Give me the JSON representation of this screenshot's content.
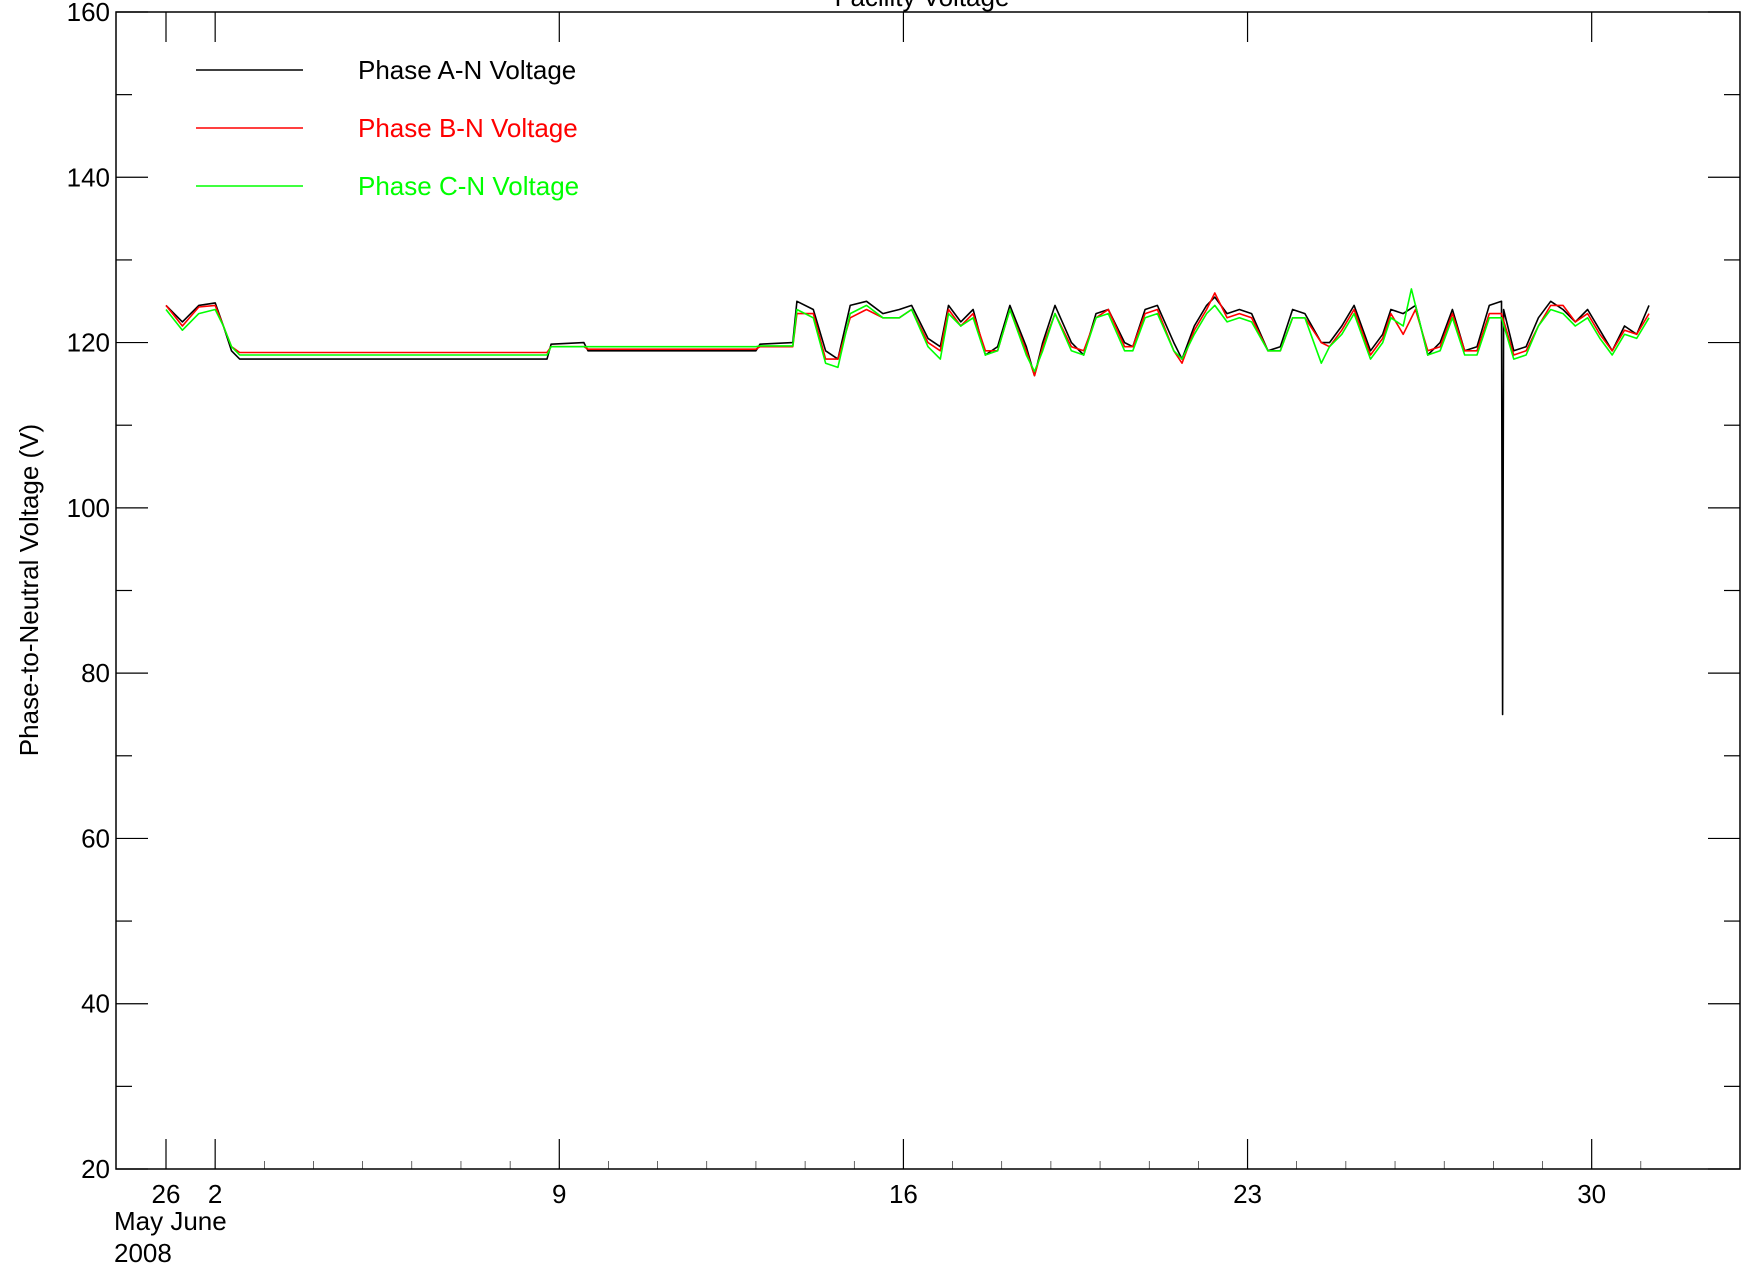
{
  "chart_data": {
    "type": "line",
    "title": "Facility Voltage",
    "ylabel": "Phase-to-Neutral Voltage (V)",
    "xlabel": "",
    "ylim": [
      20,
      160
    ],
    "xlim": [
      "2008-05-31",
      "2008-07-01"
    ],
    "y_ticks": [
      "20",
      "40",
      "60",
      "80",
      "100",
      "120",
      "140",
      "160"
    ],
    "x_ticks": [
      {
        "x": "2008-05-31",
        "label": "26"
      },
      {
        "x": "2008-06-01",
        "label": "2"
      },
      {
        "x": "2008-06-08",
        "label": "9"
      },
      {
        "x": "2008-06-15",
        "label": "16"
      },
      {
        "x": "2008-06-22",
        "label": "23"
      },
      {
        "x": "2008-06-29",
        "label": "30"
      }
    ],
    "x_sublabels": [
      "May June",
      "2008"
    ],
    "grid": false,
    "legend_position": "top-left",
    "series": [
      {
        "name": "Phase A-N Voltage",
        "color": "#000000",
        "points": [
          [
            "2008-05-31T00:00",
            124.5
          ],
          [
            "2008-05-31T08:00",
            122.5
          ],
          [
            "2008-05-31T16:00",
            124.5
          ],
          [
            "2008-06-01T00:00",
            124.8
          ],
          [
            "2008-06-01T04:00",
            122
          ],
          [
            "2008-06-01T08:00",
            119
          ],
          [
            "2008-06-01T12:00",
            118
          ],
          [
            "2008-06-07T18:00",
            118
          ],
          [
            "2008-06-07T20:00",
            119.8
          ],
          [
            "2008-06-08T12:00",
            120
          ],
          [
            "2008-06-08T14:00",
            119
          ],
          [
            "2008-06-12T00:00",
            119
          ],
          [
            "2008-06-12T02:00",
            119.8
          ],
          [
            "2008-06-12T18:00",
            120
          ],
          [
            "2008-06-12T20:00",
            125
          ],
          [
            "2008-06-13T04:00",
            124
          ],
          [
            "2008-06-13T10:00",
            119
          ],
          [
            "2008-06-13T16:00",
            118
          ],
          [
            "2008-06-13T22:00",
            124.5
          ],
          [
            "2008-06-14T06:00",
            125
          ],
          [
            "2008-06-14T14:00",
            123.5
          ],
          [
            "2008-06-14T22:00",
            124
          ],
          [
            "2008-06-15T04:00",
            124.5
          ],
          [
            "2008-06-15T12:00",
            120.5
          ],
          [
            "2008-06-15T18:00",
            119.5
          ],
          [
            "2008-06-15T22:00",
            124.5
          ],
          [
            "2008-06-16T04:00",
            122.5
          ],
          [
            "2008-06-16T10:00",
            124
          ],
          [
            "2008-06-16T16:00",
            118.5
          ],
          [
            "2008-06-16T22:00",
            119.5
          ],
          [
            "2008-06-17T04:00",
            124.5
          ],
          [
            "2008-06-17T12:00",
            119.5
          ],
          [
            "2008-06-17T16:00",
            116
          ],
          [
            "2008-06-17T20:00",
            120
          ],
          [
            "2008-06-18T02:00",
            124.5
          ],
          [
            "2008-06-18T10:00",
            120
          ],
          [
            "2008-06-18T16:00",
            118.5
          ],
          [
            "2008-06-18T22:00",
            123.5
          ],
          [
            "2008-06-19T04:00",
            124
          ],
          [
            "2008-06-19T12:00",
            120
          ],
          [
            "2008-06-19T16:00",
            119.5
          ],
          [
            "2008-06-19T22:00",
            124
          ],
          [
            "2008-06-20T04:00",
            124.5
          ],
          [
            "2008-06-20T12:00",
            120
          ],
          [
            "2008-06-20T16:00",
            118
          ],
          [
            "2008-06-20T22:00",
            122
          ],
          [
            "2008-06-21T04:00",
            124.5
          ],
          [
            "2008-06-21T08:00",
            125.5
          ],
          [
            "2008-06-21T14:00",
            123.5
          ],
          [
            "2008-06-21T20:00",
            124
          ],
          [
            "2008-06-22T02:00",
            123.5
          ],
          [
            "2008-06-22T10:00",
            119
          ],
          [
            "2008-06-22T16:00",
            119.5
          ],
          [
            "2008-06-22T22:00",
            124
          ],
          [
            "2008-06-23T04:00",
            123.5
          ],
          [
            "2008-06-23T12:00",
            120
          ],
          [
            "2008-06-23T16:00",
            120
          ],
          [
            "2008-06-23T22:00",
            122
          ],
          [
            "2008-06-24T04:00",
            124.5
          ],
          [
            "2008-06-24T12:00",
            119
          ],
          [
            "2008-06-24T18:00",
            121
          ],
          [
            "2008-06-24T22:00",
            124
          ],
          [
            "2008-06-25T04:00",
            123.5
          ],
          [
            "2008-06-25T10:00",
            124.5
          ],
          [
            "2008-06-25T16:00",
            118.5
          ],
          [
            "2008-06-25T22:00",
            120
          ],
          [
            "2008-06-26T04:00",
            124
          ],
          [
            "2008-06-26T10:00",
            119
          ],
          [
            "2008-06-26T16:00",
            119.5
          ],
          [
            "2008-06-26T22:00",
            124.5
          ],
          [
            "2008-06-27T04:00",
            125
          ],
          [
            "2008-06-27T04:30",
            75
          ],
          [
            "2008-06-27T05:00",
            124
          ],
          [
            "2008-06-27T10:00",
            119
          ],
          [
            "2008-06-27T16:00",
            119.5
          ],
          [
            "2008-06-27T22:00",
            123
          ],
          [
            "2008-06-28T04:00",
            125
          ],
          [
            "2008-06-28T10:00",
            124
          ],
          [
            "2008-06-28T16:00",
            122.5
          ],
          [
            "2008-06-28T22:00",
            124
          ],
          [
            "2008-06-29T04:00",
            121.5
          ],
          [
            "2008-06-29T10:00",
            119
          ],
          [
            "2008-06-29T16:00",
            122
          ],
          [
            "2008-06-29T22:00",
            121
          ],
          [
            "2008-06-30T04:00",
            124.5
          ]
        ]
      },
      {
        "name": "Phase B-N Voltage",
        "color": "#ff0000",
        "points": [
          [
            "2008-05-31T00:00",
            124.5
          ],
          [
            "2008-05-31T08:00",
            122
          ],
          [
            "2008-05-31T16:00",
            124.3
          ],
          [
            "2008-06-01T00:00",
            124.5
          ],
          [
            "2008-06-01T04:00",
            122
          ],
          [
            "2008-06-01T08:00",
            119.5
          ],
          [
            "2008-06-01T12:00",
            118.8
          ],
          [
            "2008-06-07T18:00",
            118.8
          ],
          [
            "2008-06-07T20:00",
            119.5
          ],
          [
            "2008-06-08T12:00",
            119.5
          ],
          [
            "2008-06-08T14:00",
            119.2
          ],
          [
            "2008-06-12T00:00",
            119.2
          ],
          [
            "2008-06-12T02:00",
            119.5
          ],
          [
            "2008-06-12T18:00",
            119.5
          ],
          [
            "2008-06-12T20:00",
            123.5
          ],
          [
            "2008-06-13T04:00",
            123.5
          ],
          [
            "2008-06-13T10:00",
            118
          ],
          [
            "2008-06-13T16:00",
            118
          ],
          [
            "2008-06-13T22:00",
            123
          ],
          [
            "2008-06-14T06:00",
            124
          ],
          [
            "2008-06-14T14:00",
            123
          ],
          [
            "2008-06-14T22:00",
            123
          ],
          [
            "2008-06-15T04:00",
            124
          ],
          [
            "2008-06-15T12:00",
            120
          ],
          [
            "2008-06-15T18:00",
            119
          ],
          [
            "2008-06-15T22:00",
            124
          ],
          [
            "2008-06-16T04:00",
            122
          ],
          [
            "2008-06-16T10:00",
            123.5
          ],
          [
            "2008-06-16T16:00",
            119
          ],
          [
            "2008-06-16T22:00",
            119
          ],
          [
            "2008-06-17T04:00",
            124
          ],
          [
            "2008-06-17T12:00",
            119
          ],
          [
            "2008-06-17T16:00",
            116
          ],
          [
            "2008-06-17T20:00",
            119.5
          ],
          [
            "2008-06-18T02:00",
            123.5
          ],
          [
            "2008-06-18T10:00",
            119.5
          ],
          [
            "2008-06-18T16:00",
            119
          ],
          [
            "2008-06-18T22:00",
            123
          ],
          [
            "2008-06-19T04:00",
            124
          ],
          [
            "2008-06-19T12:00",
            119.5
          ],
          [
            "2008-06-19T16:00",
            119.5
          ],
          [
            "2008-06-19T22:00",
            123.5
          ],
          [
            "2008-06-20T04:00",
            124
          ],
          [
            "2008-06-20T12:00",
            119
          ],
          [
            "2008-06-20T16:00",
            117.5
          ],
          [
            "2008-06-20T22:00",
            121.5
          ],
          [
            "2008-06-21T04:00",
            124
          ],
          [
            "2008-06-21T08:00",
            126
          ],
          [
            "2008-06-21T14:00",
            123
          ],
          [
            "2008-06-21T20:00",
            123.5
          ],
          [
            "2008-06-22T02:00",
            123
          ],
          [
            "2008-06-22T10:00",
            119
          ],
          [
            "2008-06-22T16:00",
            119
          ],
          [
            "2008-06-22T22:00",
            123
          ],
          [
            "2008-06-23T04:00",
            123
          ],
          [
            "2008-06-23T12:00",
            120
          ],
          [
            "2008-06-23T16:00",
            119.5
          ],
          [
            "2008-06-23T22:00",
            121.5
          ],
          [
            "2008-06-24T04:00",
            124
          ],
          [
            "2008-06-24T12:00",
            118.5
          ],
          [
            "2008-06-24T18:00",
            120.5
          ],
          [
            "2008-06-24T22:00",
            123.5
          ],
          [
            "2008-06-25T04:00",
            121
          ],
          [
            "2008-06-25T10:00",
            124
          ],
          [
            "2008-06-25T16:00",
            119
          ],
          [
            "2008-06-25T22:00",
            119.5
          ],
          [
            "2008-06-26T04:00",
            123.5
          ],
          [
            "2008-06-26T10:00",
            119
          ],
          [
            "2008-06-26T16:00",
            119
          ],
          [
            "2008-06-26T22:00",
            123.5
          ],
          [
            "2008-06-27T04:00",
            123.5
          ],
          [
            "2008-06-27T10:00",
            118.5
          ],
          [
            "2008-06-27T16:00",
            119
          ],
          [
            "2008-06-27T22:00",
            122
          ],
          [
            "2008-06-28T04:00",
            124.5
          ],
          [
            "2008-06-28T10:00",
            124.5
          ],
          [
            "2008-06-28T16:00",
            122.5
          ],
          [
            "2008-06-28T22:00",
            123.5
          ],
          [
            "2008-06-29T04:00",
            121
          ],
          [
            "2008-06-29T10:00",
            119
          ],
          [
            "2008-06-29T16:00",
            121.5
          ],
          [
            "2008-06-29T22:00",
            121
          ],
          [
            "2008-06-30T04:00",
            123.5
          ]
        ]
      },
      {
        "name": "Phase C-N Voltage",
        "color": "#00ff00",
        "points": [
          [
            "2008-05-31T00:00",
            124
          ],
          [
            "2008-05-31T08:00",
            121.5
          ],
          [
            "2008-05-31T16:00",
            123.5
          ],
          [
            "2008-06-01T00:00",
            124
          ],
          [
            "2008-06-01T04:00",
            122
          ],
          [
            "2008-06-01T08:00",
            119.5
          ],
          [
            "2008-06-01T12:00",
            118.5
          ],
          [
            "2008-06-07T18:00",
            118.5
          ],
          [
            "2008-06-07T20:00",
            119.5
          ],
          [
            "2008-06-08T12:00",
            119.5
          ],
          [
            "2008-06-08T14:00",
            119.5
          ],
          [
            "2008-06-12T00:00",
            119.5
          ],
          [
            "2008-06-12T02:00",
            119.6
          ],
          [
            "2008-06-12T18:00",
            119.6
          ],
          [
            "2008-06-12T20:00",
            124
          ],
          [
            "2008-06-13T04:00",
            123
          ],
          [
            "2008-06-13T10:00",
            117.5
          ],
          [
            "2008-06-13T16:00",
            117
          ],
          [
            "2008-06-13T22:00",
            123.5
          ],
          [
            "2008-06-14T06:00",
            124.5
          ],
          [
            "2008-06-14T14:00",
            123
          ],
          [
            "2008-06-14T22:00",
            123
          ],
          [
            "2008-06-15T04:00",
            124
          ],
          [
            "2008-06-15T12:00",
            119.5
          ],
          [
            "2008-06-15T18:00",
            118
          ],
          [
            "2008-06-15T22:00",
            123.5
          ],
          [
            "2008-06-16T04:00",
            122
          ],
          [
            "2008-06-16T10:00",
            123
          ],
          [
            "2008-06-16T16:00",
            118.5
          ],
          [
            "2008-06-16T22:00",
            119
          ],
          [
            "2008-06-17T04:00",
            124
          ],
          [
            "2008-06-17T12:00",
            118.5
          ],
          [
            "2008-06-17T16:00",
            116.5
          ],
          [
            "2008-06-17T20:00",
            119
          ],
          [
            "2008-06-18T02:00",
            123.5
          ],
          [
            "2008-06-18T10:00",
            119
          ],
          [
            "2008-06-18T16:00",
            118.5
          ],
          [
            "2008-06-18T22:00",
            123
          ],
          [
            "2008-06-19T04:00",
            123.5
          ],
          [
            "2008-06-19T12:00",
            119
          ],
          [
            "2008-06-19T16:00",
            119
          ],
          [
            "2008-06-19T22:00",
            123
          ],
          [
            "2008-06-20T04:00",
            123.5
          ],
          [
            "2008-06-20T12:00",
            119
          ],
          [
            "2008-06-20T16:00",
            118
          ],
          [
            "2008-06-20T22:00",
            121
          ],
          [
            "2008-06-21T04:00",
            123.5
          ],
          [
            "2008-06-21T08:00",
            124.5
          ],
          [
            "2008-06-21T14:00",
            122.5
          ],
          [
            "2008-06-21T20:00",
            123
          ],
          [
            "2008-06-22T02:00",
            122.5
          ],
          [
            "2008-06-22T10:00",
            119
          ],
          [
            "2008-06-22T16:00",
            119
          ],
          [
            "2008-06-22T22:00",
            123
          ],
          [
            "2008-06-23T04:00",
            123
          ],
          [
            "2008-06-23T12:00",
            117.5
          ],
          [
            "2008-06-23T16:00",
            119.5
          ],
          [
            "2008-06-23T22:00",
            121
          ],
          [
            "2008-06-24T04:00",
            123.5
          ],
          [
            "2008-06-24T12:00",
            118
          ],
          [
            "2008-06-24T18:00",
            120
          ],
          [
            "2008-06-24T22:00",
            123
          ],
          [
            "2008-06-25T04:00",
            122
          ],
          [
            "2008-06-25T08:00",
            126.5
          ],
          [
            "2008-06-25T16:00",
            118.5
          ],
          [
            "2008-06-25T22:00",
            119
          ],
          [
            "2008-06-26T04:00",
            123
          ],
          [
            "2008-06-26T10:00",
            118.5
          ],
          [
            "2008-06-26T16:00",
            118.5
          ],
          [
            "2008-06-26T22:00",
            123
          ],
          [
            "2008-06-27T04:00",
            123
          ],
          [
            "2008-06-27T10:00",
            118
          ],
          [
            "2008-06-27T16:00",
            118.5
          ],
          [
            "2008-06-27T22:00",
            122
          ],
          [
            "2008-06-28T04:00",
            124
          ],
          [
            "2008-06-28T10:00",
            123.5
          ],
          [
            "2008-06-28T16:00",
            122
          ],
          [
            "2008-06-28T22:00",
            123
          ],
          [
            "2008-06-29T04:00",
            120.5
          ],
          [
            "2008-06-29T10:00",
            118.5
          ],
          [
            "2008-06-29T16:00",
            121
          ],
          [
            "2008-06-29T22:00",
            120.5
          ],
          [
            "2008-06-30T04:00",
            123
          ]
        ]
      }
    ]
  }
}
